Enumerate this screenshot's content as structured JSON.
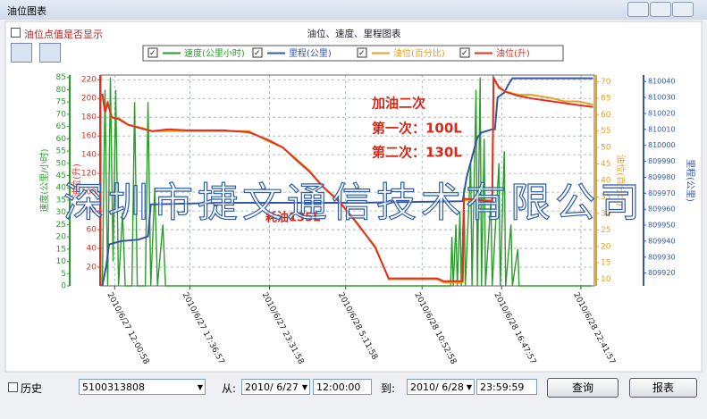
{
  "window": {
    "title": "油位图表"
  },
  "toolbar": {
    "show_points_label": "油位点值是否显示"
  },
  "chart_data": {
    "type": "line",
    "title": "油位、速度、里程图表",
    "xlim": [
      11,
      47.7
    ],
    "xticks": [
      {
        "value": 12.016,
        "label": "2010/6/27 12:00:58"
      },
      {
        "value": 17.616,
        "label": "2010/6/27 17:36:57"
      },
      {
        "value": 23.533,
        "label": "2010/6/27 23:31:58"
      },
      {
        "value": 29.199,
        "label": "2010/6/28 5:11:58"
      },
      {
        "value": 34.883,
        "label": "2010/6/28 10:52:58"
      },
      {
        "value": 40.799,
        "label": "2010/6/28 16:47:57"
      },
      {
        "value": 46.699,
        "label": "2010/6/28 22:41:57"
      }
    ],
    "y_axes": [
      {
        "label": "速度(公里/小时)",
        "color": "#2a9d2a",
        "ylim": [
          0,
          86
        ],
        "yticks": [
          0,
          5,
          10,
          15,
          20,
          25,
          30,
          35,
          40,
          45,
          50,
          55,
          60,
          65,
          70,
          75,
          80,
          85
        ]
      },
      {
        "label": "油位(升)",
        "color": "#e03020",
        "ylim": [
          0,
          225
        ],
        "yticks": [
          20,
          40,
          60,
          80,
          100,
          120,
          140,
          160,
          180,
          200,
          220
        ]
      },
      {
        "label": "油位(百分比)",
        "color": "#e8a020",
        "ylim": [
          8,
          72
        ],
        "yticks": [
          10,
          15,
          20,
          25,
          30,
          35,
          40,
          45,
          50,
          55,
          60,
          65,
          70
        ]
      },
      {
        "label": "里程(公里)",
        "color": "#3355aa",
        "ylim": [
          809912,
          810044
        ],
        "yticks": [
          809920,
          809930,
          809940,
          809950,
          809960,
          809970,
          809980,
          809990,
          810000,
          810010,
          810020,
          810030,
          810040
        ]
      }
    ],
    "grid": true,
    "grid_axis": 1,
    "series": [
      {
        "name": "速度(公里小时)",
        "color": "#2a9d2a",
        "axis": 0,
        "x": [
          11.1,
          11.3,
          11.5,
          11.7,
          11.9,
          12.1,
          12.3,
          12.6,
          12.8,
          13.3,
          13.5,
          13.7,
          14.3,
          14.5,
          14.7,
          15.0,
          15.2,
          15.6,
          15.8,
          37.0,
          37.1,
          37.2,
          37.4,
          37.5,
          37.7,
          37.8,
          38.0,
          38.1,
          38.5,
          38.6,
          38.9,
          39.0,
          39.2,
          39.3,
          39.5,
          39.6,
          40.0,
          40.1,
          40.6,
          40.7,
          41.0,
          41.1,
          41.5,
          41.6,
          42.0,
          42.1,
          47.5
        ],
        "values": [
          0,
          80,
          0,
          85,
          10,
          80,
          0,
          30,
          0,
          0,
          75,
          0,
          0,
          75,
          0,
          40,
          0,
          25,
          0,
          0,
          20,
          0,
          25,
          0,
          30,
          0,
          40,
          0,
          50,
          0,
          80,
          0,
          85,
          0,
          60,
          0,
          35,
          0,
          50,
          0,
          55,
          0,
          25,
          0,
          15,
          0,
          0
        ]
      },
      {
        "name": "里程(公里)",
        "color": "#3355aa",
        "axis": 3,
        "x": [
          11.1,
          11.4,
          11.6,
          12.5,
          13.8,
          14.5,
          14.7,
          20,
          30,
          37.9,
          38.2,
          39.0,
          39.3,
          40.1,
          40.3,
          40.5,
          41.0,
          41.3,
          41.6,
          44,
          47.6
        ],
        "values": [
          809912,
          809925,
          809938,
          809940,
          809941,
          809943,
          809963,
          809964,
          809964,
          809965,
          809980,
          810005,
          810008,
          810010,
          810010,
          810030,
          810033,
          810038,
          810042,
          810042,
          810042
        ]
      },
      {
        "name": "油位(百分比)",
        "color": "#e8a020",
        "axis": 2,
        "x": [
          11.1,
          11.3,
          11.5,
          11.8,
          12.3,
          13.0,
          14.0,
          14.8,
          16.0,
          17.4,
          20.1,
          22.0,
          23.4,
          24.5,
          25.4,
          26.5,
          27.5,
          28.7,
          30.0,
          31.4,
          32.4,
          34.0,
          36.0,
          36.5,
          37.9,
          38.0,
          39.0,
          40.1,
          40.2,
          40.6,
          41.1,
          42.0,
          43.0,
          44.5,
          45.5,
          46.5,
          47.6
        ],
        "values": [
          66,
          61,
          64,
          59,
          59,
          57,
          56,
          55,
          55,
          55,
          55,
          55,
          52,
          50,
          47,
          43,
          38,
          34,
          27,
          20,
          10,
          10,
          10,
          9,
          9,
          34,
          34,
          34,
          71,
          68,
          67,
          66,
          66,
          65,
          64,
          64,
          63
        ]
      },
      {
        "name": "油位(升)",
        "color": "#e03020",
        "axis": 1,
        "x": [
          11.1,
          11.3,
          11.5,
          11.8,
          12.3,
          13.0,
          14.0,
          14.8,
          16.0,
          17.4,
          20.1,
          22.0,
          23.4,
          24.5,
          25.4,
          26.5,
          27.5,
          28.7,
          30.0,
          31.4,
          32.4,
          34.0,
          36.0,
          36.5,
          37.9,
          38.0,
          39.0,
          40.1,
          40.2,
          40.6,
          41.1,
          42.0,
          43.0,
          44.5,
          45.5,
          46.5,
          47.6
        ],
        "values": [
          205,
          185,
          195,
          180,
          178,
          172,
          168,
          165,
          167,
          166,
          166,
          164,
          156,
          148,
          136,
          122,
          106,
          90,
          68,
          41,
          8,
          8,
          8,
          5,
          5,
          93,
          92,
          90,
          222,
          212,
          207,
          203,
          200,
          197,
          195,
          193,
          191
        ]
      }
    ],
    "annotations": [
      "加油二次",
      "第一次：100L",
      "第二次：130L",
      "耗油135L"
    ],
    "watermark": "深圳市捷文通信技术有限公司"
  },
  "query_bar": {
    "history_label": "历史",
    "vehicle_id": "5100313808",
    "from_label": "从:",
    "from_date": "2010/ 6/27",
    "from_time": "12:00:00",
    "to_label": "到:",
    "to_date": "2010/ 6/28",
    "to_time": "23:59:59",
    "query_button": "查询",
    "report_button": "报表"
  }
}
